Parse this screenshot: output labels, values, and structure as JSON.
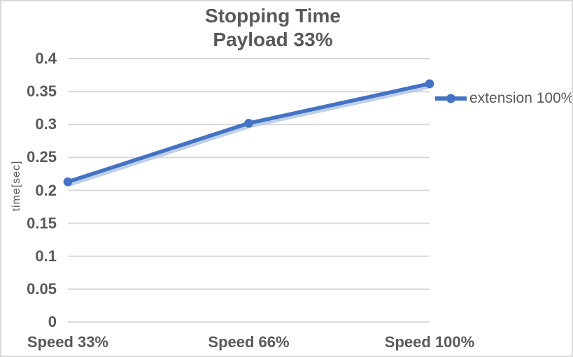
{
  "chart": {
    "title": "Stopping Time",
    "subtitle": "Payload 33%",
    "y_axis_title": "time[sec]",
    "legend": [
      {
        "label": "extension 100%",
        "marker": "line-with-circle-marker"
      }
    ]
  },
  "chart_data": {
    "type": "line",
    "title": "Stopping Time",
    "subtitle": "Payload 33%",
    "xlabel": "",
    "ylabel": "time[sec]",
    "categories": [
      "Speed 33%",
      "Speed 66%",
      "Speed 100%"
    ],
    "series": [
      {
        "name": "extension 100%",
        "values": [
          0.213,
          0.302,
          0.362
        ]
      }
    ],
    "ylim": [
      0,
      0.4
    ],
    "yticks": [
      0,
      0.05,
      0.1,
      0.15,
      0.2,
      0.25,
      0.3,
      0.35,
      0.4
    ],
    "ytick_labels": [
      "0",
      "0.05",
      "0.1",
      "0.15",
      "0.2",
      "0.25",
      "0.3",
      "0.35",
      "0.4"
    ],
    "grid": true,
    "legend_position": "right"
  },
  "colors": {
    "series": "#4472C4",
    "series_glow": "#B7CBE9",
    "gridline": "#D9D9D9",
    "axis_text": "#595959",
    "title_text": "#595959",
    "border": "#D9D9D9",
    "background": "#FFFFFF"
  }
}
